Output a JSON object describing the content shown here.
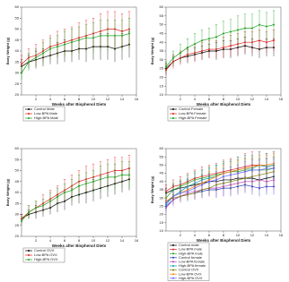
{
  "chart_data": [
    {
      "type": "line",
      "xlabel": "Weeks after Bisphenol Diets",
      "ylabel": "Body Weight (g)",
      "xlim": [
        0,
        16
      ],
      "xticks": [
        2,
        4,
        6,
        8,
        10,
        12,
        14,
        16
      ],
      "ylim": [
        20,
        60
      ],
      "yticks": [
        20,
        25,
        30,
        35,
        40,
        45,
        50,
        55,
        60
      ],
      "x": [
        0,
        1,
        2,
        3,
        4,
        5,
        6,
        7,
        8,
        9,
        10,
        11,
        12,
        13,
        14,
        15
      ],
      "series": [
        {
          "name": "Control Male",
          "color": "#000000",
          "values": [
            33,
            35,
            36,
            37,
            38,
            39,
            40,
            40,
            41,
            41,
            42,
            42,
            42,
            41,
            42,
            43
          ],
          "errors": [
            3,
            3,
            4,
            4,
            4,
            5,
            5,
            5,
            5,
            6,
            6,
            6,
            6,
            6,
            6,
            6
          ]
        },
        {
          "name": "Low-BPA Male",
          "color": "#e02020",
          "values": [
            34,
            37,
            38,
            40,
            42,
            43,
            44,
            45,
            46,
            47,
            48,
            49,
            50,
            50,
            49,
            50
          ],
          "errors": [
            4,
            4,
            5,
            5,
            5,
            6,
            6,
            6,
            7,
            7,
            7,
            8,
            8,
            8,
            8,
            8
          ]
        },
        {
          "name": "High-BPA Male",
          "color": "#20a020",
          "values": [
            30,
            35,
            37,
            39,
            41,
            42,
            43,
            44,
            45,
            46,
            46,
            47,
            47,
            47,
            47,
            48
          ],
          "errors": [
            3,
            4,
            4,
            5,
            5,
            5,
            6,
            6,
            6,
            6,
            7,
            7,
            7,
            7,
            7,
            7
          ]
        }
      ]
    },
    {
      "type": "line",
      "xlabel": "Weeks after Bisphenol Diets",
      "ylabel": "Body Weight (g)",
      "xlim": [
        0,
        16
      ],
      "xticks": [
        2,
        4,
        6,
        8,
        10,
        12,
        14,
        16
      ],
      "ylim": [
        10,
        60
      ],
      "yticks": [
        10,
        15,
        20,
        25,
        30,
        35,
        40,
        45,
        50,
        55,
        60
      ],
      "x": [
        0,
        1,
        2,
        3,
        4,
        5,
        6,
        7,
        8,
        9,
        10,
        11,
        12,
        13,
        14,
        15
      ],
      "series": [
        {
          "name": "Control Female",
          "color": "#000000",
          "values": [
            25,
            29,
            31,
            32,
            33,
            34,
            35,
            35,
            36,
            36,
            37,
            38,
            37,
            36,
            37,
            37
          ],
          "errors": [
            3,
            3,
            3,
            4,
            4,
            4,
            4,
            5,
            5,
            5,
            5,
            5,
            5,
            5,
            5,
            5
          ]
        },
        {
          "name": "Low-BPA Female",
          "color": "#e02020",
          "values": [
            24,
            29,
            31,
            33,
            34,
            35,
            36,
            36,
            37,
            38,
            39,
            40,
            40,
            41,
            40,
            41
          ],
          "errors": [
            3,
            4,
            4,
            4,
            5,
            5,
            5,
            5,
            6,
            6,
            6,
            6,
            6,
            6,
            6,
            6
          ]
        },
        {
          "name": "High-BPA Female",
          "color": "#20a020",
          "values": [
            26,
            31,
            34,
            37,
            39,
            41,
            42,
            43,
            45,
            46,
            47,
            48,
            48,
            50,
            49,
            50
          ],
          "errors": [
            3,
            4,
            5,
            5,
            6,
            6,
            6,
            7,
            7,
            7,
            8,
            8,
            8,
            8,
            8,
            8
          ]
        }
      ]
    },
    {
      "type": "line",
      "xlabel": "Weeks after Bisphenol Diets",
      "ylabel": "Body Weight (g)",
      "xlim": [
        0,
        16
      ],
      "xticks": [
        2,
        4,
        6,
        8,
        10,
        12,
        14,
        16
      ],
      "ylim": [
        20,
        60
      ],
      "yticks": [
        20,
        25,
        30,
        35,
        40,
        45,
        50,
        55,
        60
      ],
      "x": [
        0,
        1,
        2,
        3,
        4,
        5,
        6,
        7,
        8,
        9,
        10,
        11,
        12,
        13,
        14,
        15
      ],
      "series": [
        {
          "name": "Control OVX",
          "color": "#000000",
          "values": [
            28,
            30,
            31,
            32,
            33,
            35,
            36,
            38,
            39,
            40,
            41,
            42,
            43,
            44,
            45,
            46
          ],
          "errors": [
            2,
            2,
            3,
            3,
            3,
            4,
            4,
            4,
            4,
            5,
            5,
            5,
            5,
            5,
            5,
            5
          ]
        },
        {
          "name": "Low-BPA OVX",
          "color": "#e02020",
          "values": [
            28,
            31,
            33,
            35,
            37,
            39,
            41,
            43,
            45,
            46,
            47,
            48,
            49,
            50,
            50,
            51
          ],
          "errors": [
            2,
            3,
            3,
            4,
            4,
            4,
            5,
            5,
            5,
            6,
            6,
            6,
            6,
            6,
            6,
            6
          ]
        },
        {
          "name": "High-BPA OVX",
          "color": "#20a020",
          "values": [
            27,
            31,
            33,
            34,
            36,
            38,
            40,
            41,
            43,
            44,
            45,
            46,
            47,
            47,
            48,
            48
          ],
          "errors": [
            2,
            3,
            3,
            3,
            4,
            4,
            4,
            5,
            5,
            5,
            5,
            6,
            6,
            6,
            6,
            6
          ]
        }
      ]
    },
    {
      "type": "line",
      "xlabel": "Weeks after Bisphenol Diets",
      "ylabel": "Body Weight (g)",
      "xlim": [
        0,
        16
      ],
      "xticks": [
        2,
        4,
        6,
        8,
        10,
        12,
        14,
        16
      ],
      "ylim": [
        10,
        60
      ],
      "yticks": [
        10,
        15,
        20,
        25,
        30,
        35,
        40,
        45,
        50,
        55,
        60
      ],
      "x": [
        0,
        1,
        2,
        3,
        4,
        5,
        6,
        7,
        8,
        9,
        10,
        11,
        12,
        13,
        14,
        15
      ],
      "series": [
        {
          "name": "Control male",
          "color": "#000000",
          "values": [
            33,
            35,
            36,
            37,
            38,
            39,
            40,
            40,
            41,
            41,
            42,
            42,
            42,
            41,
            42,
            43
          ],
          "errors": [
            3,
            3,
            4,
            4,
            4,
            5,
            5,
            5,
            5,
            6,
            6,
            6,
            6,
            6,
            6,
            6
          ]
        },
        {
          "name": "Low-BPA male",
          "color": "#e02020",
          "values": [
            34,
            37,
            38,
            40,
            42,
            43,
            44,
            45,
            46,
            47,
            48,
            49,
            50,
            50,
            49,
            50
          ],
          "errors": [
            4,
            4,
            5,
            5,
            5,
            6,
            6,
            6,
            7,
            7,
            7,
            8,
            8,
            8,
            8,
            8
          ]
        },
        {
          "name": "High-BPA male",
          "color": "#20a020",
          "values": [
            30,
            35,
            37,
            39,
            41,
            42,
            43,
            44,
            45,
            46,
            46,
            47,
            47,
            47,
            47,
            48
          ],
          "errors": [
            3,
            4,
            4,
            5,
            5,
            5,
            6,
            6,
            6,
            6,
            7,
            7,
            7,
            7,
            7,
            7
          ]
        },
        {
          "name": "Control female",
          "color": "#2040c0",
          "values": [
            25,
            29,
            31,
            32,
            33,
            34,
            35,
            35,
            36,
            36,
            37,
            38,
            37,
            36,
            37,
            37
          ],
          "errors": [
            3,
            3,
            3,
            4,
            4,
            4,
            4,
            5,
            5,
            5,
            5,
            5,
            5,
            5,
            5,
            5
          ]
        },
        {
          "name": "Low-BPA female",
          "color": "#c040c0",
          "values": [
            24,
            29,
            31,
            33,
            34,
            35,
            36,
            36,
            37,
            38,
            39,
            40,
            40,
            41,
            40,
            41
          ],
          "errors": [
            3,
            4,
            4,
            4,
            5,
            5,
            5,
            5,
            6,
            6,
            6,
            6,
            6,
            6,
            6,
            6
          ]
        },
        {
          "name": "High-BPA female",
          "color": "#00a0a0",
          "values": [
            26,
            31,
            34,
            37,
            39,
            41,
            42,
            43,
            45,
            46,
            47,
            48,
            48,
            50,
            49,
            50
          ],
          "errors": [
            3,
            4,
            5,
            5,
            6,
            6,
            6,
            7,
            7,
            7,
            8,
            8,
            8,
            8,
            8,
            8
          ]
        },
        {
          "name": "Control OVX",
          "color": "#808000",
          "values": [
            28,
            30,
            31,
            32,
            33,
            35,
            36,
            38,
            39,
            40,
            41,
            42,
            43,
            44,
            45,
            46
          ],
          "errors": [
            2,
            2,
            3,
            3,
            3,
            4,
            4,
            4,
            4,
            5,
            5,
            5,
            5,
            5,
            5,
            5
          ]
        },
        {
          "name": "Low-BPA OVX",
          "color": "#ff8000",
          "values": [
            28,
            31,
            33,
            35,
            37,
            39,
            41,
            43,
            45,
            46,
            47,
            48,
            49,
            50,
            50,
            51
          ],
          "errors": [
            2,
            3,
            3,
            4,
            4,
            4,
            5,
            5,
            5,
            6,
            6,
            6,
            6,
            6,
            6,
            6
          ]
        },
        {
          "name": "High-BPA OVX",
          "color": "#6060ff",
          "values": [
            27,
            31,
            33,
            34,
            36,
            38,
            40,
            41,
            43,
            44,
            45,
            46,
            47,
            47,
            48,
            48
          ],
          "errors": [
            2,
            3,
            3,
            3,
            4,
            4,
            4,
            5,
            5,
            5,
            5,
            6,
            6,
            6,
            6,
            6
          ]
        }
      ]
    }
  ]
}
